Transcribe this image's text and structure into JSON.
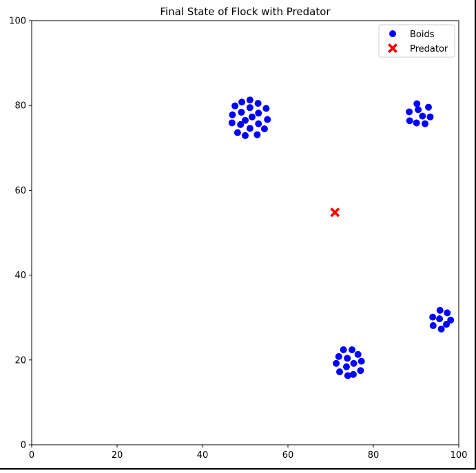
{
  "chart_data": {
    "type": "scatter",
    "title": "Final State of Flock with Predator",
    "xlabel": "",
    "ylabel": "",
    "xlim": [
      0,
      100
    ],
    "ylim": [
      0,
      100
    ],
    "xticks": [
      "0",
      "20",
      "40",
      "60",
      "80",
      "100"
    ],
    "yticks": [
      "0",
      "20",
      "40",
      "60",
      "80",
      "100"
    ],
    "grid": false,
    "legend_position": "top-right",
    "series": [
      {
        "name": "Boids",
        "marker": "circle",
        "color": "#0000ff",
        "points": [
          [
            51.1,
            81.3
          ],
          [
            49.2,
            80.8
          ],
          [
            53.0,
            80.5
          ],
          [
            47.6,
            79.9
          ],
          [
            51.1,
            79.5
          ],
          [
            54.9,
            79.3
          ],
          [
            49.1,
            78.4
          ],
          [
            53.1,
            78.2
          ],
          [
            47.0,
            77.8
          ],
          [
            51.6,
            77.3
          ],
          [
            55.2,
            76.7
          ],
          [
            50.0,
            76.5
          ],
          [
            46.9,
            75.9
          ],
          [
            48.9,
            75.5
          ],
          [
            53.1,
            75.7
          ],
          [
            51.1,
            74.6
          ],
          [
            54.5,
            74.5
          ],
          [
            48.2,
            73.6
          ],
          [
            50.0,
            72.9
          ],
          [
            52.8,
            73.1
          ],
          [
            90.2,
            80.4
          ],
          [
            92.9,
            79.6
          ],
          [
            90.5,
            79.0
          ],
          [
            88.4,
            78.5
          ],
          [
            91.5,
            77.5
          ],
          [
            93.3,
            77.3
          ],
          [
            88.5,
            76.4
          ],
          [
            90.1,
            75.9
          ],
          [
            92.1,
            75.7
          ],
          [
            95.6,
            31.7
          ],
          [
            97.3,
            31.1
          ],
          [
            93.9,
            30.1
          ],
          [
            95.5,
            29.7
          ],
          [
            98.1,
            29.4
          ],
          [
            97.1,
            28.4
          ],
          [
            94.0,
            28.1
          ],
          [
            95.9,
            27.3
          ],
          [
            73.0,
            22.4
          ],
          [
            75.0,
            22.4
          ],
          [
            71.9,
            20.8
          ],
          [
            76.4,
            21.3
          ],
          [
            73.9,
            20.4
          ],
          [
            71.3,
            19.2
          ],
          [
            75.4,
            19.2
          ],
          [
            77.2,
            19.7
          ],
          [
            73.7,
            18.4
          ],
          [
            72.1,
            17.2
          ],
          [
            77.0,
            17.5
          ],
          [
            74.0,
            16.3
          ],
          [
            75.3,
            16.6
          ]
        ]
      },
      {
        "name": "Predator",
        "marker": "x",
        "color": "#ff0000",
        "points": [
          [
            71.0,
            54.8
          ]
        ]
      }
    ]
  }
}
